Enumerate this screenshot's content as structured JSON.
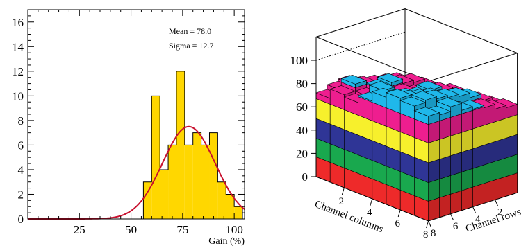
{
  "chart_data": [
    {
      "type": "bar",
      "subtype": "histogram",
      "xlabel": "Gain (%)",
      "ylabel": "",
      "xlim": [
        0,
        105
      ],
      "ylim": [
        0,
        17
      ],
      "x_ticks": [
        "25",
        "50",
        "75",
        "100"
      ],
      "y_ticks": [
        "0",
        "2",
        "4",
        "6",
        "8",
        "10",
        "12",
        "14",
        "16"
      ],
      "stats": {
        "mean_label": "Mean  = 78.0",
        "sigma_label": "Sigma = 12.7",
        "mean": 78.0,
        "sigma": 12.7
      },
      "bin_width": 4,
      "bins": [
        {
          "x0": 56,
          "count": 3
        },
        {
          "x0": 60,
          "count": 10
        },
        {
          "x0": 64,
          "count": 4
        },
        {
          "x0": 68,
          "count": 6
        },
        {
          "x0": 72,
          "count": 12
        },
        {
          "x0": 76,
          "count": 6
        },
        {
          "x0": 80,
          "count": 7
        },
        {
          "x0": 84,
          "count": 6
        },
        {
          "x0": 88,
          "count": 7
        },
        {
          "x0": 92,
          "count": 3
        },
        {
          "x0": 96,
          "count": 2
        },
        {
          "x0": 100,
          "count": 1
        }
      ],
      "fit": {
        "type": "gaussian",
        "mean": 78.0,
        "sigma": 12.7,
        "peak": 7.5
      },
      "colors": {
        "fill": "#ffd700",
        "edge": "#000000",
        "fit": "#c8102e"
      }
    },
    {
      "type": "lego3d",
      "xlabel": "Channel columns",
      "ylabel": "Channel rows",
      "z_ticks": [
        "0",
        "20",
        "40",
        "60",
        "80",
        "100"
      ],
      "x_ticks": [
        "2",
        "4",
        "6",
        "8"
      ],
      "y_ticks": [
        "2",
        "4",
        "6",
        "8"
      ],
      "zlim": [
        0,
        100
      ],
      "color_bands": [
        {
          "from": 0,
          "to": 17,
          "color": "#ee2a2a"
        },
        {
          "from": 17,
          "to": 33,
          "color": "#19a84e"
        },
        {
          "from": 33,
          "to": 50,
          "color": "#2f3596"
        },
        {
          "from": 50,
          "to": 67,
          "color": "#f7f02c"
        },
        {
          "from": 67,
          "to": 83,
          "color": "#ee1e8f"
        },
        {
          "from": 83,
          "to": 100,
          "color": "#1fb8ea"
        }
      ],
      "grid_columns": 8,
      "grid_rows": 8,
      "values": [
        [
          72,
          80,
          78,
          84,
          92,
          96,
          94,
          90
        ],
        [
          76,
          86,
          80,
          90,
          88,
          92,
          96,
          88
        ],
        [
          78,
          82,
          84,
          80,
          86,
          90,
          94,
          92
        ],
        [
          74,
          80,
          86,
          82,
          84,
          88,
          92,
          86
        ],
        [
          70,
          78,
          82,
          78,
          86,
          84,
          90,
          84
        ],
        [
          68,
          76,
          80,
          76,
          82,
          80,
          86,
          82
        ],
        [
          62,
          70,
          74,
          72,
          78,
          76,
          80,
          78
        ],
        [
          52,
          60,
          66,
          64,
          70,
          68,
          74,
          76
        ]
      ]
    }
  ]
}
